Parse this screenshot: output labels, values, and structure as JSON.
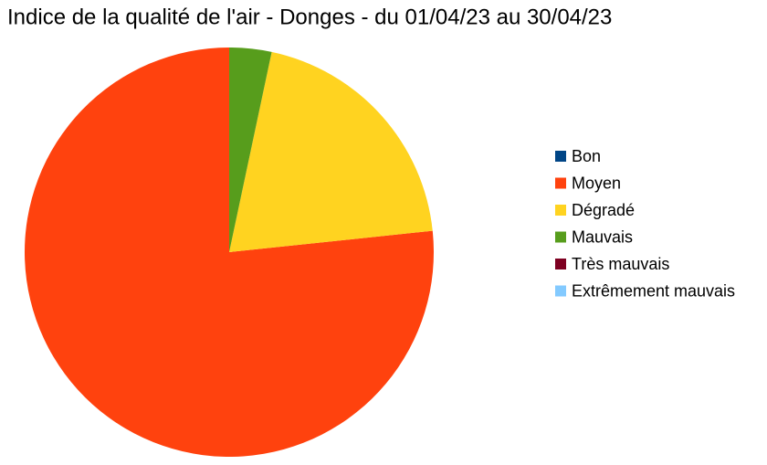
{
  "chart_data": {
    "type": "pie",
    "title": "Indice de la qualité de l'air - Donges - du 01/04/23 au 30/04/23",
    "categories": [
      "Bon",
      "Moyen",
      "Dégradé",
      "Mauvais",
      "Très mauvais",
      "Extrêmement mauvais"
    ],
    "values": [
      0,
      23,
      6,
      1,
      0,
      0
    ],
    "colors": [
      "#004586",
      "#ff420e",
      "#ffd320",
      "#579d1c",
      "#7e0021",
      "#83caff"
    ],
    "legend": "right"
  }
}
